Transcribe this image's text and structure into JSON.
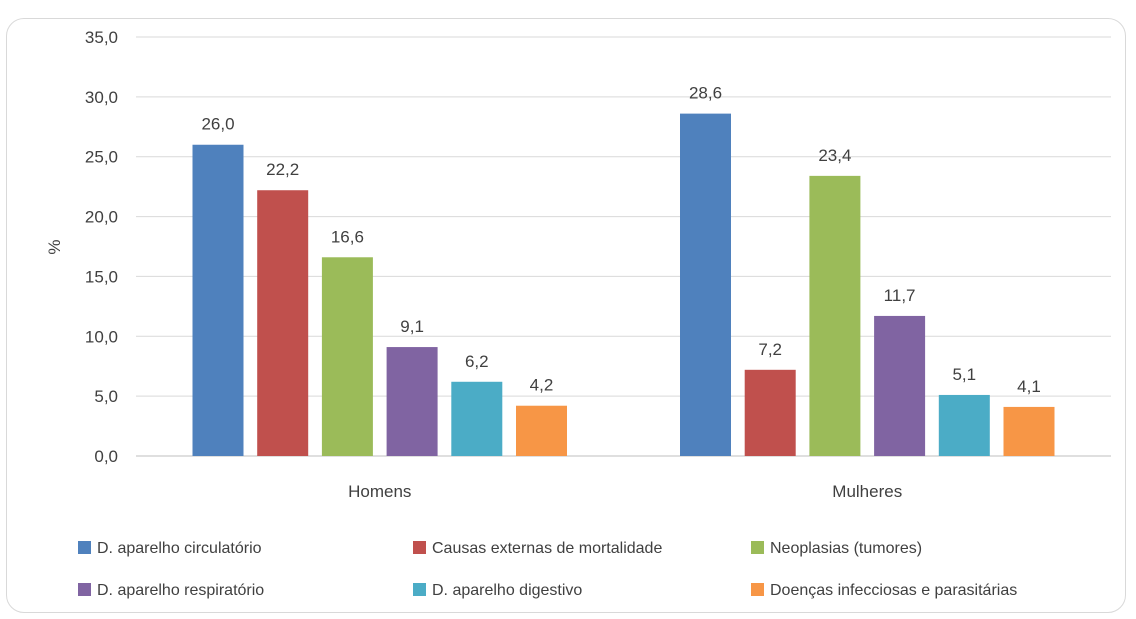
{
  "chart_data": {
    "type": "bar",
    "title": "",
    "xlabel": "",
    "ylabel": "%",
    "ylim": [
      0,
      35
    ],
    "ytick_step": 5,
    "ytick_labels": [
      "0,0",
      "5,0",
      "10,0",
      "15,0",
      "20,0",
      "25,0",
      "30,0",
      "35,0"
    ],
    "grid": true,
    "legend_position": "bottom",
    "categories": [
      "Homens",
      "Mulheres"
    ],
    "series": [
      {
        "name": "D. aparelho circulatório",
        "color": "#4f81bd",
        "values": [
          26.0,
          28.6
        ],
        "labels": [
          "26,0",
          "28,6"
        ]
      },
      {
        "name": "Causas externas de mortalidade",
        "color": "#c0504d",
        "values": [
          22.2,
          7.2
        ],
        "labels": [
          "22,2",
          "7,2"
        ]
      },
      {
        "name": "Neoplasias (tumores)",
        "color": "#9bbb59",
        "values": [
          16.6,
          23.4
        ],
        "labels": [
          "16,6",
          "23,4"
        ]
      },
      {
        "name": "D. aparelho respiratório",
        "color": "#8064a2",
        "values": [
          9.1,
          11.7
        ],
        "labels": [
          "9,1",
          "11,7"
        ]
      },
      {
        "name": "D. aparelho digestivo",
        "color": "#4bacc6",
        "values": [
          6.2,
          5.1
        ],
        "labels": [
          "6,2",
          "5,1"
        ]
      },
      {
        "name": "Doenças infecciosas e parasitárias",
        "color": "#f79646",
        "values": [
          4.2,
          4.1
        ],
        "labels": [
          "4,2",
          "4,1"
        ]
      }
    ]
  }
}
